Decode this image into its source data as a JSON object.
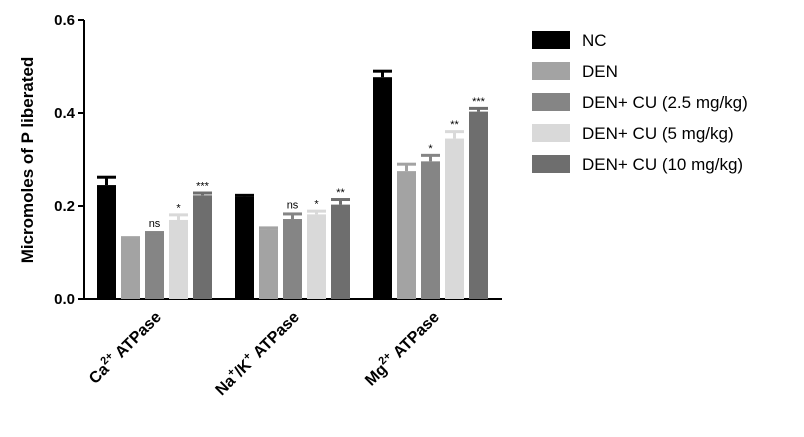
{
  "chart_data": {
    "type": "bar",
    "ylabel": "Micromoles of P liberated",
    "ylim": [
      0,
      0.6
    ],
    "yticks": [
      "0.0",
      "0.2",
      "0.4",
      "0.6"
    ],
    "categories": [
      {
        "base": "Ca",
        "sup": "2+",
        "rest": " ATPase"
      },
      {
        "base": "Na",
        "sup": "+",
        "mid": "/K",
        "sup2": "+",
        "rest": " ATPase"
      },
      {
        "base": "Mg",
        "sup": "2+",
        "rest": " ATPase"
      }
    ],
    "series": [
      {
        "name": "NC",
        "color": "#000000",
        "values": [
          0.245,
          0.22,
          0.477
        ],
        "errors": [
          0.018,
          0.004,
          0.014
        ],
        "sig": [
          "",
          "",
          ""
        ]
      },
      {
        "name": "DEN",
        "color": "#a3a3a3",
        "values": [
          0.13,
          0.15,
          0.275
        ],
        "errors": [
          0.003,
          0.004,
          0.016
        ],
        "sig": [
          "",
          "",
          ""
        ]
      },
      {
        "name": "DEN+ CU (2.5 mg/kg)",
        "color": "#858585",
        "values": [
          0.14,
          0.172,
          0.296
        ],
        "errors": [
          0.004,
          0.012,
          0.014
        ],
        "sig": [
          "ns",
          "ns",
          "*"
        ]
      },
      {
        "name": "DEN+ CU (5 mg/kg)",
        "color": "#d9d9d9",
        "values": [
          0.17,
          0.182,
          0.345
        ],
        "errors": [
          0.012,
          0.008,
          0.016
        ],
        "sig": [
          "*",
          "*",
          "**"
        ]
      },
      {
        "name": "DEN+ CU (10 mg/kg)",
        "color": "#6e6e6e",
        "values": [
          0.223,
          0.203,
          0.403
        ],
        "errors": [
          0.006,
          0.012,
          0.008
        ],
        "sig": [
          "***",
          "**",
          "***"
        ]
      }
    ],
    "grid": false,
    "legend_position": "right"
  }
}
